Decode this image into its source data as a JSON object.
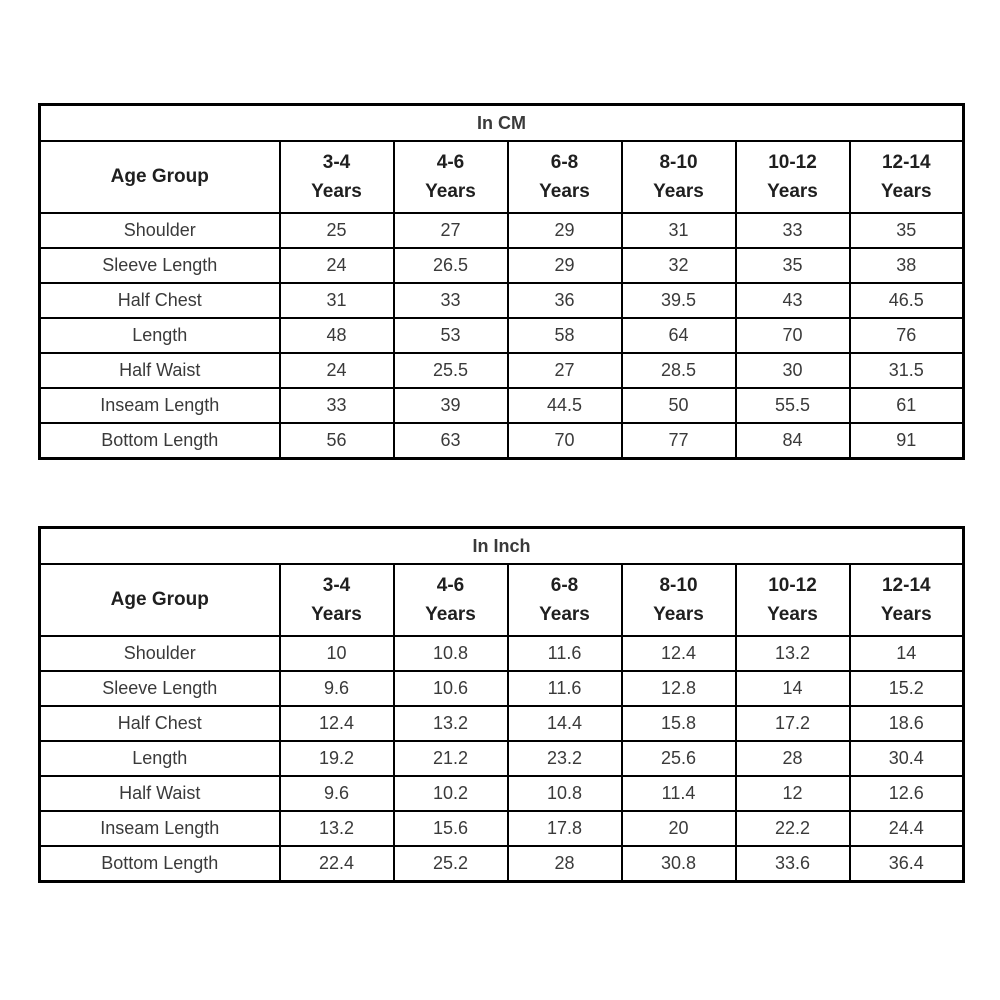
{
  "colors": {
    "background": "#ffffff",
    "border": "#000000",
    "header_text": "#1f1f1f",
    "value_text": "#3a3a3a"
  },
  "tables": [
    {
      "title": "In CM",
      "row_header_label": "Age Group",
      "column_headers": [
        {
          "line1": "3-4",
          "line2": "Years"
        },
        {
          "line1": "4-6",
          "line2": "Years"
        },
        {
          "line1": "6-8",
          "line2": "Years"
        },
        {
          "line1": "8-10",
          "line2": "Years"
        },
        {
          "line1": "10-12",
          "line2": "Years"
        },
        {
          "line1": "12-14",
          "line2": "Years"
        }
      ],
      "rows": [
        {
          "label": "Shoulder",
          "values": [
            "25",
            "27",
            "29",
            "31",
            "33",
            "35"
          ]
        },
        {
          "label": "Sleeve Length",
          "values": [
            "24",
            "26.5",
            "29",
            "32",
            "35",
            "38"
          ]
        },
        {
          "label": "Half Chest",
          "values": [
            "31",
            "33",
            "36",
            "39.5",
            "43",
            "46.5"
          ]
        },
        {
          "label": "Length",
          "values": [
            "48",
            "53",
            "58",
            "64",
            "70",
            "76"
          ]
        },
        {
          "label": "Half Waist",
          "values": [
            "24",
            "25.5",
            "27",
            "28.5",
            "30",
            "31.5"
          ]
        },
        {
          "label": "Inseam Length",
          "values": [
            "33",
            "39",
            "44.5",
            "50",
            "55.5",
            "61"
          ]
        },
        {
          "label": "Bottom Length",
          "values": [
            "56",
            "63",
            "70",
            "77",
            "84",
            "91"
          ]
        }
      ]
    },
    {
      "title": "In Inch",
      "row_header_label": "Age Group",
      "column_headers": [
        {
          "line1": "3-4",
          "line2": "Years"
        },
        {
          "line1": "4-6",
          "line2": "Years"
        },
        {
          "line1": "6-8",
          "line2": "Years"
        },
        {
          "line1": "8-10",
          "line2": "Years"
        },
        {
          "line1": "10-12",
          "line2": "Years"
        },
        {
          "line1": "12-14",
          "line2": "Years"
        }
      ],
      "rows": [
        {
          "label": "Shoulder",
          "values": [
            "10",
            "10.8",
            "11.6",
            "12.4",
            "13.2",
            "14"
          ]
        },
        {
          "label": "Sleeve Length",
          "values": [
            "9.6",
            "10.6",
            "11.6",
            "12.8",
            "14",
            "15.2"
          ]
        },
        {
          "label": "Half Chest",
          "values": [
            "12.4",
            "13.2",
            "14.4",
            "15.8",
            "17.2",
            "18.6"
          ]
        },
        {
          "label": "Length",
          "values": [
            "19.2",
            "21.2",
            "23.2",
            "25.6",
            "28",
            "30.4"
          ]
        },
        {
          "label": "Half Waist",
          "values": [
            "9.6",
            "10.2",
            "10.8",
            "11.4",
            "12",
            "12.6"
          ]
        },
        {
          "label": "Inseam Length",
          "values": [
            "13.2",
            "15.6",
            "17.8",
            "20",
            "22.2",
            "24.4"
          ]
        },
        {
          "label": "Bottom Length",
          "values": [
            "22.4",
            "25.2",
            "28",
            "30.8",
            "33.6",
            "36.4"
          ]
        }
      ]
    }
  ]
}
